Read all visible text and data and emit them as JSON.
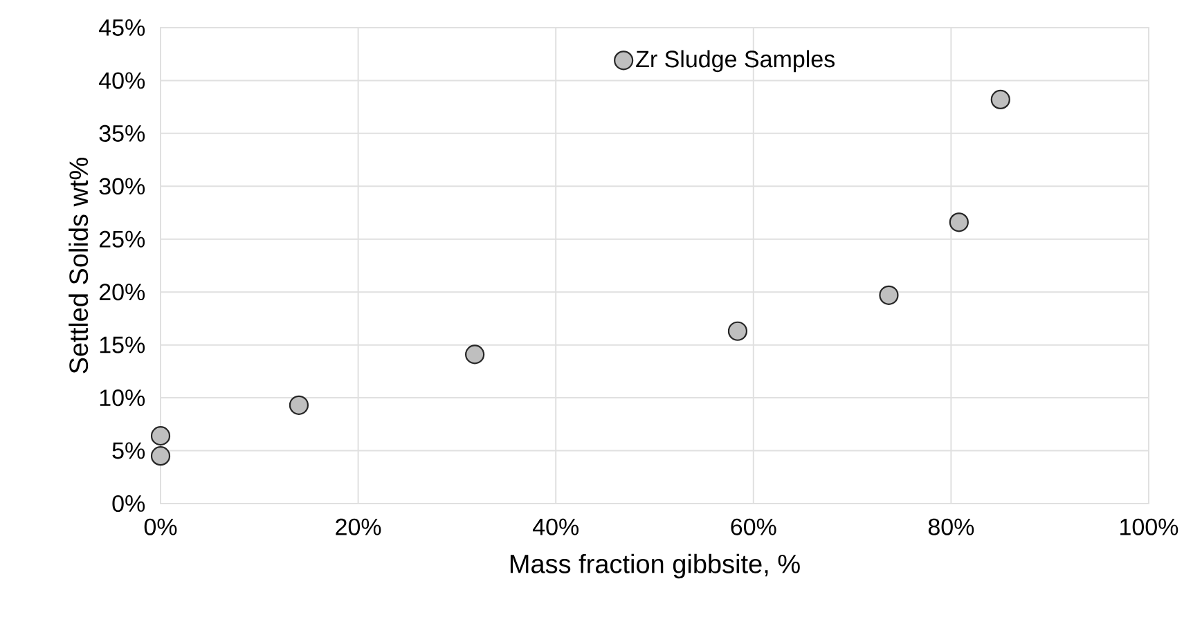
{
  "chart_data": {
    "type": "scatter",
    "xlabel": "Mass fraction gibbsite, %",
    "ylabel": "Settled Solids wt%",
    "x": [
      0,
      0,
      14.0,
      31.8,
      58.4,
      73.7,
      80.8,
      85.0
    ],
    "series": [
      {
        "name": "Zr Sludge Samples",
        "color": "#bfbfbf",
        "values": [
          6.4,
          4.5,
          9.3,
          14.1,
          16.3,
          19.7,
          26.6,
          38.2
        ]
      }
    ],
    "xlim": [
      0,
      100
    ],
    "ylim": [
      0,
      45
    ],
    "xticks": [
      {
        "value": 0,
        "label": "0%"
      },
      {
        "value": 20,
        "label": "20%"
      },
      {
        "value": 40,
        "label": "40%"
      },
      {
        "value": 60,
        "label": "60%"
      },
      {
        "value": 80,
        "label": "80%"
      },
      {
        "value": 100,
        "label": "100%"
      }
    ],
    "yticks": [
      {
        "value": 0,
        "label": "0%"
      },
      {
        "value": 5,
        "label": "5%"
      },
      {
        "value": 10,
        "label": "10%"
      },
      {
        "value": 15,
        "label": "15%"
      },
      {
        "value": 20,
        "label": "20%"
      },
      {
        "value": 25,
        "label": "25%"
      },
      {
        "value": 30,
        "label": "30%"
      },
      {
        "value": 35,
        "label": "35%"
      },
      {
        "value": 40,
        "label": "40%"
      },
      {
        "value": 45,
        "label": "45%"
      }
    ],
    "grid": true,
    "legend": "top"
  }
}
